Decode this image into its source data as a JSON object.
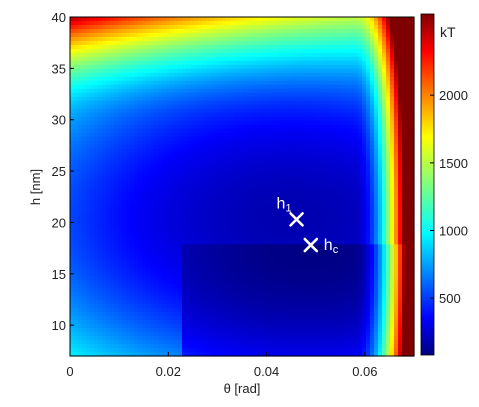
{
  "chart_data": {
    "type": "heatmap",
    "title": "",
    "xlabel": "θ [rad]",
    "ylabel": "h [nm]",
    "xlim": [
      0,
      0.07
    ],
    "ylim": [
      7,
      40
    ],
    "x_ticks": [
      {
        "value": 0,
        "label": "0"
      },
      {
        "value": 0.02,
        "label": "0.02"
      },
      {
        "value": 0.04,
        "label": "0.04"
      },
      {
        "value": 0.06,
        "label": "0.06"
      }
    ],
    "y_ticks": [
      {
        "value": 10,
        "label": "10"
      },
      {
        "value": 15,
        "label": "15"
      },
      {
        "value": 20,
        "label": "20"
      },
      {
        "value": 25,
        "label": "25"
      },
      {
        "value": 30,
        "label": "30"
      },
      {
        "value": 35,
        "label": "35"
      },
      {
        "value": 40,
        "label": "40"
      }
    ],
    "colorbar": {
      "unit": "kT",
      "range": [
        80,
        2600
      ],
      "ticks": [
        {
          "value": 500,
          "label": "500"
        },
        {
          "value": 1000,
          "label": "1000"
        },
        {
          "value": 1500,
          "label": "1500"
        },
        {
          "value": 2000,
          "label": "2000"
        }
      ],
      "colormap": "jet"
    },
    "field": {
      "upper_minimum": {
        "theta": 0.045,
        "h": 20.4,
        "energy": 200
      },
      "lower_minimum": {
        "theta": 0.048,
        "h": 17.4,
        "energy": 90
      },
      "discontinuity_h": 18.0,
      "max_energy": 2600
    },
    "markers": [
      {
        "label": "h",
        "subscript": "1",
        "theta": 0.0461,
        "h": 20.3
      },
      {
        "label": "h",
        "subscript": "c",
        "theta": 0.049,
        "h": 17.8
      }
    ]
  }
}
